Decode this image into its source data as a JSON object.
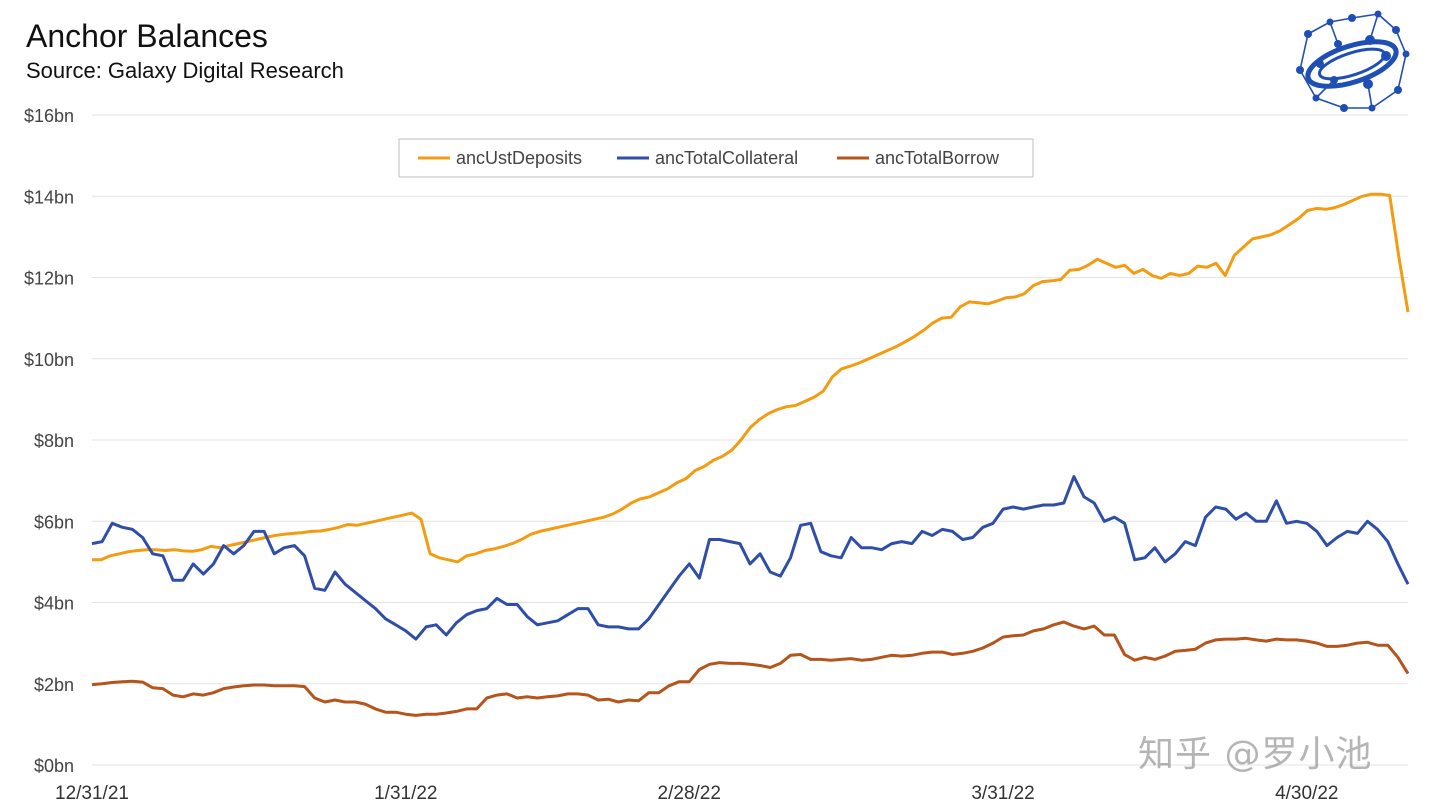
{
  "header": {
    "title": "Anchor Balances",
    "subtitle": "Source: Galaxy Digital Research",
    "watermark": "知乎 @罗小池"
  },
  "logo": {
    "icon": "galaxy-network-logo-icon",
    "color": "#1f4fb5"
  },
  "chart_data": {
    "type": "line",
    "title": "Anchor Balances",
    "subtitle": "Source: Galaxy Digital Research",
    "xlabel": "",
    "ylabel": "",
    "x_start": "2021-12-31",
    "x_end": "2022-05-10",
    "x_ticks": [
      "12/31/21",
      "1/31/22",
      "2/28/22",
      "3/31/22",
      "4/30/22"
    ],
    "y_ticks": [
      "$0bn",
      "$2bn",
      "$4bn",
      "$6bn",
      "$8bn",
      "$10bn",
      "$12bn",
      "$14bn",
      "$16bn"
    ],
    "ylim": [
      0,
      16
    ],
    "grid": "horizontal",
    "legend_position": "top-center",
    "series": [
      {
        "name": "ancUstDeposits",
        "color": "#f39c12",
        "values": [
          5.05,
          5.05,
          5.15,
          5.2,
          5.25,
          5.28,
          5.3,
          5.3,
          5.28,
          5.3,
          5.27,
          5.26,
          5.3,
          5.38,
          5.35,
          5.4,
          5.45,
          5.5,
          5.55,
          5.6,
          5.65,
          5.68,
          5.7,
          5.72,
          5.75,
          5.76,
          5.8,
          5.85,
          5.92,
          5.9,
          5.95,
          6.0,
          6.05,
          6.1,
          6.15,
          6.2,
          6.05,
          5.2,
          5.1,
          5.05,
          5.0,
          5.15,
          5.2,
          5.28,
          5.32,
          5.38,
          5.45,
          5.55,
          5.68,
          5.75,
          5.8,
          5.85,
          5.9,
          5.95,
          6.0,
          6.05,
          6.1,
          6.18,
          6.3,
          6.45,
          6.55,
          6.6,
          6.7,
          6.8,
          6.95,
          7.05,
          7.25,
          7.35,
          7.5,
          7.6,
          7.75,
          8.0,
          8.3,
          8.5,
          8.65,
          8.75,
          8.82,
          8.85,
          8.95,
          9.05,
          9.2,
          9.55,
          9.75,
          9.82,
          9.9,
          10.0,
          10.1,
          10.2,
          10.3,
          10.42,
          10.55,
          10.7,
          10.88,
          11.0,
          11.02,
          11.28,
          11.4,
          11.38,
          11.35,
          11.42,
          11.5,
          11.52,
          11.6,
          11.8,
          11.9,
          11.92,
          11.95,
          12.18,
          12.2,
          12.3,
          12.45,
          12.35,
          12.25,
          12.3,
          12.1,
          12.2,
          12.05,
          11.98,
          12.1,
          12.05,
          12.1,
          12.28,
          12.25,
          12.35,
          12.05,
          12.55,
          12.75,
          12.95,
          13.0,
          13.05,
          13.15,
          13.3,
          13.45,
          13.65,
          13.7,
          13.68,
          13.72,
          13.8,
          13.9,
          14.0,
          14.05,
          14.05,
          14.02,
          12.5,
          11.15
        ]
      },
      {
        "name": "ancTotalCollateral",
        "color": "#2f4ea8",
        "values": [
          5.45,
          5.5,
          5.95,
          5.85,
          5.8,
          5.6,
          5.2,
          5.15,
          4.55,
          4.55,
          4.95,
          4.7,
          4.95,
          5.4,
          5.2,
          5.4,
          5.75,
          5.75,
          5.2,
          5.35,
          5.4,
          5.15,
          4.35,
          4.3,
          4.75,
          4.45,
          4.25,
          4.05,
          3.85,
          3.6,
          3.45,
          3.3,
          3.1,
          3.4,
          3.45,
          3.2,
          3.5,
          3.7,
          3.8,
          3.85,
          4.1,
          3.95,
          3.95,
          3.65,
          3.45,
          3.5,
          3.55,
          3.7,
          3.85,
          3.85,
          3.45,
          3.4,
          3.4,
          3.35,
          3.35,
          3.6,
          3.95,
          4.3,
          4.65,
          4.95,
          4.6,
          5.55,
          5.55,
          5.5,
          5.45,
          4.95,
          5.2,
          4.75,
          4.65,
          5.1,
          5.9,
          5.95,
          5.25,
          5.15,
          5.1,
          5.6,
          5.35,
          5.35,
          5.3,
          5.45,
          5.5,
          5.45,
          5.75,
          5.65,
          5.8,
          5.75,
          5.55,
          5.6,
          5.85,
          5.95,
          6.3,
          6.35,
          6.3,
          6.35,
          6.4,
          6.4,
          6.45,
          7.1,
          6.6,
          6.45,
          6.0,
          6.1,
          5.95,
          5.05,
          5.1,
          5.35,
          5.0,
          5.2,
          5.5,
          5.4,
          6.1,
          6.35,
          6.3,
          6.05,
          6.2,
          6.0,
          6.0,
          6.5,
          5.95,
          6.0,
          5.95,
          5.75,
          5.4,
          5.6,
          5.75,
          5.7,
          6.0,
          5.8,
          5.5,
          4.95,
          4.45
        ]
      },
      {
        "name": "ancTotalBorrow",
        "color": "#b5541b",
        "values": [
          1.98,
          2.0,
          2.03,
          2.05,
          2.06,
          2.04,
          1.9,
          1.88,
          1.72,
          1.68,
          1.75,
          1.72,
          1.78,
          1.88,
          1.92,
          1.95,
          1.97,
          1.97,
          1.95,
          1.95,
          1.95,
          1.93,
          1.65,
          1.55,
          1.6,
          1.55,
          1.55,
          1.5,
          1.38,
          1.3,
          1.3,
          1.25,
          1.22,
          1.25,
          1.25,
          1.28,
          1.32,
          1.38,
          1.38,
          1.65,
          1.72,
          1.75,
          1.65,
          1.68,
          1.65,
          1.68,
          1.7,
          1.75,
          1.75,
          1.72,
          1.6,
          1.62,
          1.55,
          1.6,
          1.58,
          1.78,
          1.78,
          1.95,
          2.05,
          2.05,
          2.35,
          2.48,
          2.52,
          2.5,
          2.5,
          2.48,
          2.45,
          2.4,
          2.5,
          2.7,
          2.72,
          2.6,
          2.6,
          2.58,
          2.6,
          2.62,
          2.58,
          2.6,
          2.65,
          2.7,
          2.68,
          2.7,
          2.75,
          2.78,
          2.78,
          2.72,
          2.75,
          2.8,
          2.88,
          3.0,
          3.15,
          3.18,
          3.2,
          3.3,
          3.35,
          3.45,
          3.52,
          3.42,
          3.35,
          3.42,
          3.2,
          3.2,
          2.72,
          2.58,
          2.65,
          2.6,
          2.68,
          2.8,
          2.82,
          2.85,
          3.0,
          3.08,
          3.1,
          3.1,
          3.12,
          3.08,
          3.05,
          3.1,
          3.08,
          3.08,
          3.05,
          3.0,
          2.92,
          2.92,
          2.95,
          3.0,
          3.02,
          2.95,
          2.95,
          2.65,
          2.25
        ]
      }
    ]
  }
}
